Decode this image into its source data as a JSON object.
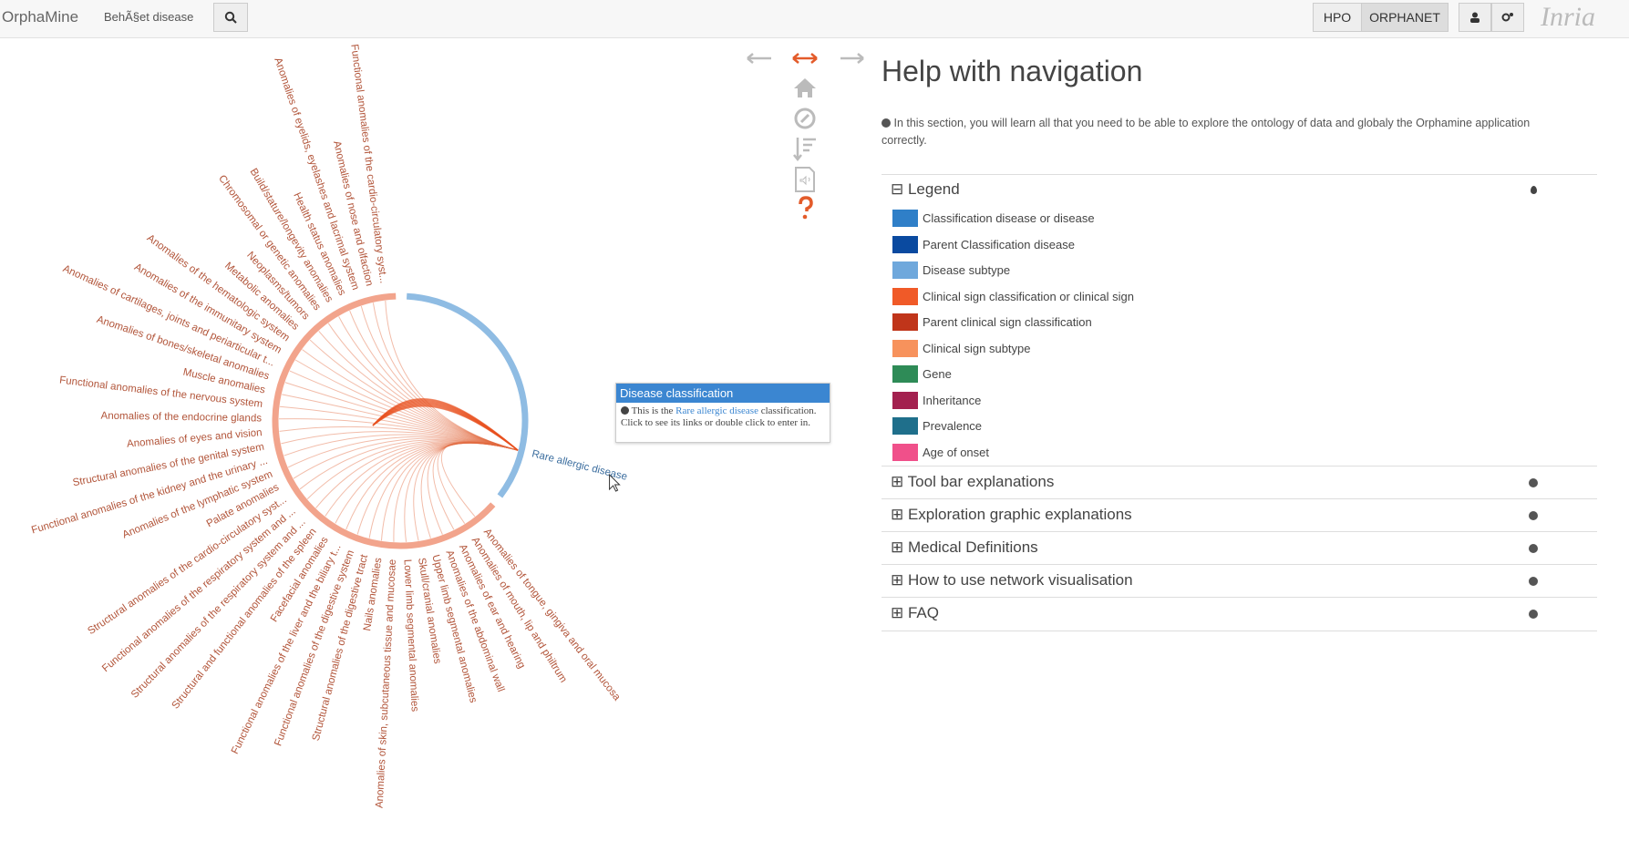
{
  "header": {
    "brand": "OrphaMine",
    "search_text": "BehÃ§et disease",
    "buttons": [
      "HPO",
      "ORPHANET"
    ],
    "logo": "Inria"
  },
  "graph": {
    "clinical_labels": [
      "Functional anomalies of the cardio-circulatory syst...",
      "Anomalies of nose and olfaction",
      "Anomalies of eyelids, eyelashes and lacrimal system",
      "Health status anomalies",
      "Build/stature/longevity anomalies",
      "Chromosomal or genetic anomalies",
      "Neoplasms/tumors",
      "Metabolic anomalies",
      "Anomalies of the hematologic system",
      "Anomalies of the immunitary system",
      "Anomalies of cartilages, joints and periarticular t...",
      "Anomalies of bones/skeletal anomalies",
      "Muscle anomalies",
      "Functional anomalies of the nervous system",
      "Anomalies of the endocrine glands",
      "Anomalies of eyes and vision",
      "Structural anomalies of the genital system",
      "Functional anomalies of the kidney and the urinary ...",
      "Anomalies of the lymphatic system",
      "Palate anomalies",
      "Structural anomalies of the cardio-circulatory syst...",
      "Functional anomalies of the respiratory system and ...",
      "Structural anomalies of the respiratory system and ...",
      "Structural and functional anomalies of the spleen",
      "Facefacial anomalies",
      "Functional anomalies of the liver and the biliary t...",
      "Functional anomalies of the digestive system",
      "Structural anomalies of the digestive tract",
      "Nails anomalies",
      "Anomalies of skin, subcutaneous tissue and mucosae",
      "Lower limb segmental anomalies",
      "Skull/cranial anomalies",
      "Upper limb segmental anomalies",
      "Anomalies of the abdominal wall",
      "Anomalies of ear and hearing",
      "Anomalies of mouth, lip and philtrum",
      "Anomalies of tongue, gingiva and oral mucosa"
    ],
    "selected_label": "Rare allergic disease",
    "tooltip": {
      "title": "Disease classification",
      "text_before": "This is the",
      "link": "Rare allergic disease",
      "text_after": "classification.",
      "line2": "Click to see its links or double click to enter in."
    }
  },
  "help": {
    "title": "Help with navigation",
    "intro": "In this section, you will learn all that you need to be able to explore the ontology of data and globaly the Orphamine application correctly.",
    "legend_title": "Legend",
    "legend": [
      {
        "label": "Classification disease or disease",
        "color": "#2f7fc8"
      },
      {
        "label": "Parent Classification disease",
        "color": "#0a4aa0"
      },
      {
        "label": "Disease subtype",
        "color": "#6fa8dc"
      },
      {
        "label": "Clinical sign classification or clinical sign",
        "color": "#f05a28"
      },
      {
        "label": "Parent clinical sign classification",
        "color": "#c0351a"
      },
      {
        "label": "Clinical sign subtype",
        "color": "#f7925c"
      },
      {
        "label": "Gene",
        "color": "#2e8b57"
      },
      {
        "label": "Inheritance",
        "color": "#a3214f"
      },
      {
        "label": "Prevalence",
        "color": "#1f6f8b"
      },
      {
        "label": "Age of onset",
        "color": "#f0508a"
      }
    ],
    "sections": [
      "Tool bar explanations",
      "Exploration graphic explanations",
      "Medical Definitions",
      "How to use network visualisation",
      "FAQ"
    ]
  }
}
